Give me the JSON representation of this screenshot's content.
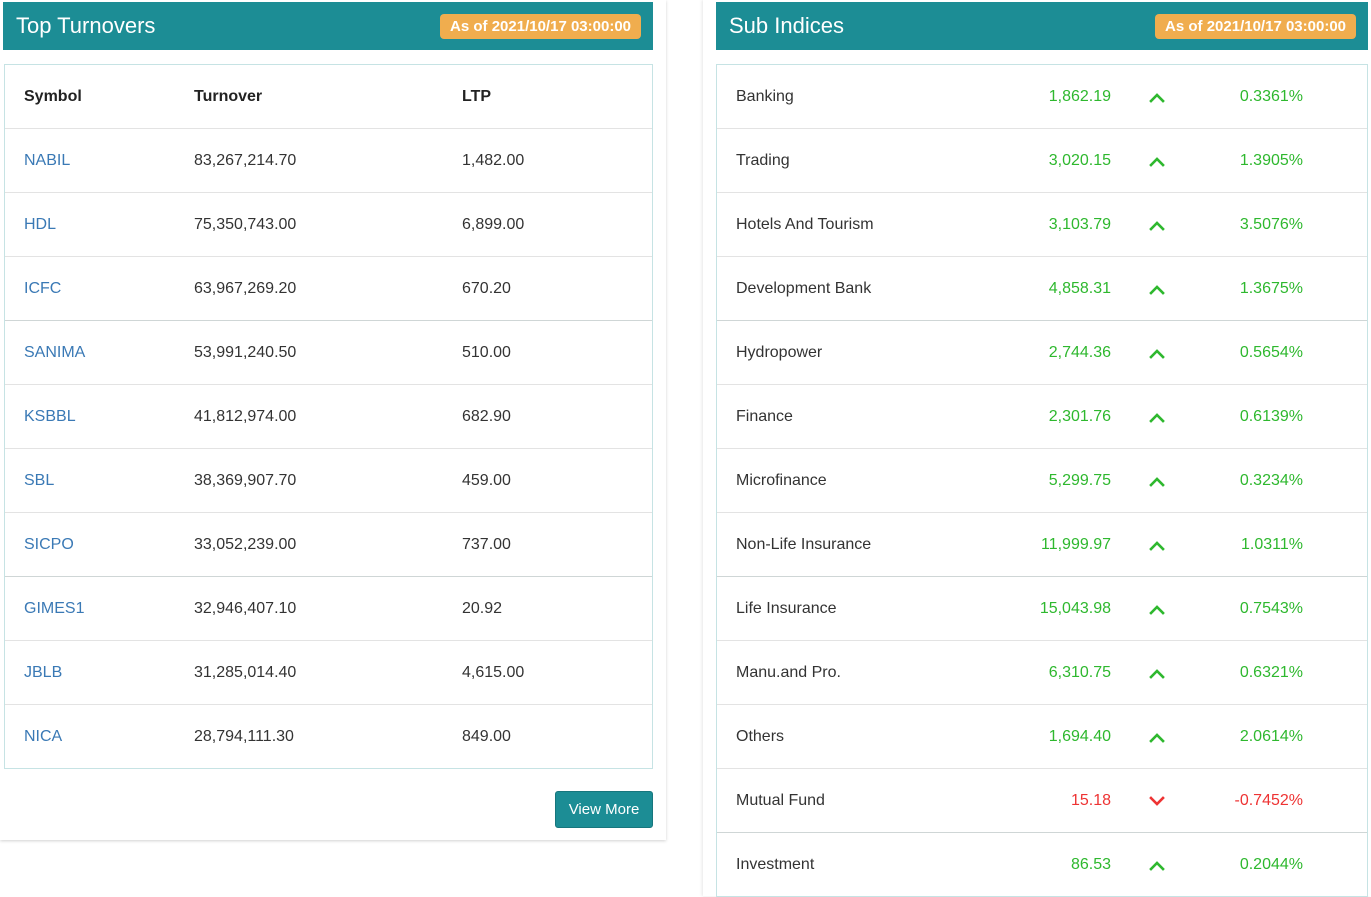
{
  "top_turnovers": {
    "title": "Top Turnovers",
    "as_of": "As of 2021/10/17 03:00:00",
    "columns": {
      "symbol": "Symbol",
      "turnover": "Turnover",
      "ltp": "LTP"
    },
    "rows": [
      {
        "symbol": "NABIL",
        "turnover": "83,267,214.70",
        "ltp": "1,482.00"
      },
      {
        "symbol": "HDL",
        "turnover": "75,350,743.00",
        "ltp": "6,899.00"
      },
      {
        "symbol": "ICFC",
        "turnover": "63,967,269.20",
        "ltp": "670.20"
      },
      {
        "symbol": "SANIMA",
        "turnover": "53,991,240.50",
        "ltp": "510.00"
      },
      {
        "symbol": "KSBBL",
        "turnover": "41,812,974.00",
        "ltp": "682.90"
      },
      {
        "symbol": "SBL",
        "turnover": "38,369,907.70",
        "ltp": "459.00"
      },
      {
        "symbol": "SICPO",
        "turnover": "33,052,239.00",
        "ltp": "737.00"
      },
      {
        "symbol": "GIMES1",
        "turnover": "32,946,407.10",
        "ltp": "20.92"
      },
      {
        "symbol": "JBLB",
        "turnover": "31,285,014.40",
        "ltp": "4,615.00"
      },
      {
        "symbol": "NICA",
        "turnover": "28,794,111.30",
        "ltp": "849.00"
      }
    ],
    "view_more_label": "View More"
  },
  "sub_indices": {
    "title": "Sub Indices",
    "as_of": "As of 2021/10/17 03:00:00",
    "rows": [
      {
        "name": "Banking",
        "value": "1,862.19",
        "direction": "up",
        "change": "0.3361%"
      },
      {
        "name": "Trading",
        "value": "3,020.15",
        "direction": "up",
        "change": "1.3905%"
      },
      {
        "name": "Hotels And Tourism",
        "value": "3,103.79",
        "direction": "up",
        "change": "3.5076%"
      },
      {
        "name": "Development Bank",
        "value": "4,858.31",
        "direction": "up",
        "change": "1.3675%"
      },
      {
        "name": "Hydropower",
        "value": "2,744.36",
        "direction": "up",
        "change": "0.5654%"
      },
      {
        "name": "Finance",
        "value": "2,301.76",
        "direction": "up",
        "change": "0.6139%"
      },
      {
        "name": "Microfinance",
        "value": "5,299.75",
        "direction": "up",
        "change": "0.3234%"
      },
      {
        "name": "Non-Life Insurance",
        "value": "11,999.97",
        "direction": "up",
        "change": "1.0311%"
      },
      {
        "name": "Life Insurance",
        "value": "15,043.98",
        "direction": "up",
        "change": "0.7543%"
      },
      {
        "name": "Manu.and Pro.",
        "value": "6,310.75",
        "direction": "up",
        "change": "0.6321%"
      },
      {
        "name": "Others",
        "value": "1,694.40",
        "direction": "up",
        "change": "2.0614%"
      },
      {
        "name": "Mutual Fund",
        "value": "15.18",
        "direction": "down",
        "change": "-0.7452%"
      },
      {
        "name": "Investment",
        "value": "86.53",
        "direction": "up",
        "change": "0.2044%"
      }
    ]
  },
  "colors": {
    "header": "#1c8d95",
    "badge": "#f0ad4e",
    "up": "#2eb82e",
    "down": "#ee3333",
    "link": "#3a79b5"
  },
  "icons": {
    "up": "chevron-up-icon",
    "down": "chevron-down-icon"
  }
}
